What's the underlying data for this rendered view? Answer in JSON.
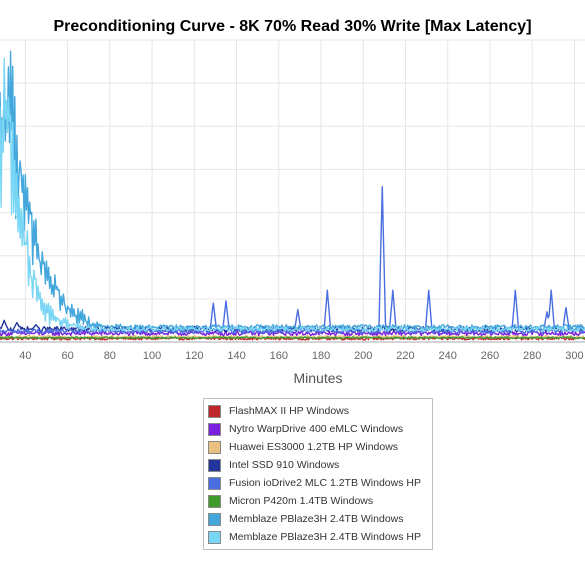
{
  "chart_data": {
    "type": "line",
    "title": "Preconditioning Curve - 8K 70% Read 30% Write [Max Latency]",
    "xlabel": "Minutes",
    "ylabel": "",
    "xlim": [
      28,
      305
    ],
    "ylim": [
      0,
      7
    ],
    "x_ticks": [
      40,
      60,
      80,
      100,
      120,
      140,
      160,
      180,
      200,
      220,
      240,
      260,
      280,
      300
    ],
    "grid": true,
    "legend_position": "bottom",
    "series": [
      {
        "name": "FlashMAX II HP Windows",
        "color": "#c0272d",
        "base": 0.08,
        "noise": 0.03,
        "spikes": []
      },
      {
        "name": "Nytro WarpDrive 400 eMLC Windows",
        "color": "#7b1fe0",
        "base": 0.2,
        "noise": 0.05,
        "spikes": []
      },
      {
        "name": "Huawei ES3000 1.2TB HP Windows",
        "color": "#e9c07e",
        "base": 0.12,
        "noise": 0.03,
        "spikes": []
      },
      {
        "name": "Intel SSD 910 Windows",
        "color": "#23349a",
        "base": 0.3,
        "noise": 0.06,
        "spikes": [
          [
            30,
            0.5
          ],
          [
            36,
            0.45
          ],
          [
            45,
            0.4
          ]
        ]
      },
      {
        "name": "Fusion ioDrive2 MLC 1.2TB Windows HP",
        "color": "#4a6ee0",
        "base": 0.25,
        "noise": 0.05,
        "spikes": [
          [
            129,
            0.9
          ],
          [
            135,
            0.95
          ],
          [
            169,
            0.75
          ],
          [
            183,
            1.2
          ],
          [
            209,
            3.6
          ],
          [
            214,
            1.2
          ],
          [
            231,
            1.2
          ],
          [
            272,
            1.2
          ],
          [
            287,
            0.7
          ],
          [
            289,
            1.2
          ],
          [
            296,
            0.8
          ]
        ]
      },
      {
        "name": "Micron P420m 1.4TB Windows",
        "color": "#3f9b2b",
        "base": 0.1,
        "noise": 0.02,
        "spikes": []
      },
      {
        "name": "Memblaze PBlaze3H 2.4TB Windows",
        "color": "#43a7dc",
        "base": 0.35,
        "noise": 0.05,
        "profile": [
          [
            28,
            5.5
          ],
          [
            32,
            6.6
          ],
          [
            36,
            5.0
          ],
          [
            40,
            3.6
          ],
          [
            44,
            2.8
          ],
          [
            48,
            2.1
          ],
          [
            52,
            1.6
          ],
          [
            56,
            1.2
          ],
          [
            60,
            0.95
          ],
          [
            64,
            0.75
          ],
          [
            68,
            0.6
          ],
          [
            72,
            0.45
          ],
          [
            80,
            0.38
          ],
          [
            90,
            0.35
          ]
        ],
        "spikes": []
      },
      {
        "name": "Memblaze PBlaze3H 2.4TB Windows HP",
        "color": "#79d6f5",
        "base": 0.3,
        "noise": 0.05,
        "profile": [
          [
            28,
            5.0
          ],
          [
            31,
            6.5
          ],
          [
            34,
            4.8
          ],
          [
            38,
            3.2
          ],
          [
            42,
            2.0
          ],
          [
            46,
            1.3
          ],
          [
            50,
            0.85
          ],
          [
            54,
            0.6
          ],
          [
            60,
            0.45
          ],
          [
            70,
            0.35
          ]
        ],
        "spikes": []
      }
    ]
  }
}
